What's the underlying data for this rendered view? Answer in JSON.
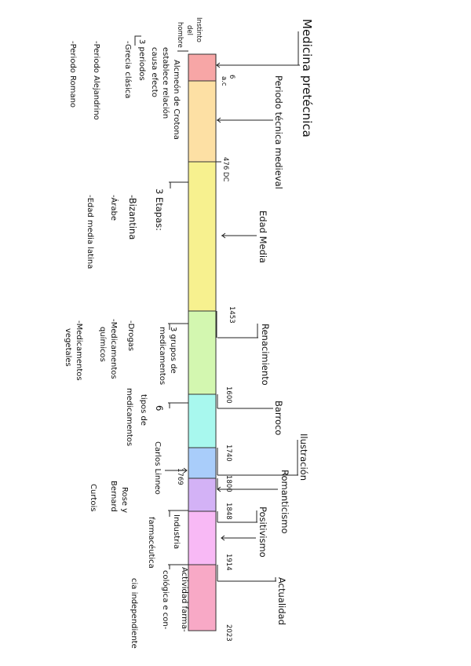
{
  "timeline": {
    "segments": [
      {
        "name": "inicio",
        "color": "#f7a6a6",
        "end": 103
      },
      {
        "name": "tecnica-medieval",
        "color": "#fde0a4",
        "end": 206
      },
      {
        "name": "edad-media",
        "color": "#f7f18f",
        "end": 396
      },
      {
        "name": "renacimiento",
        "color": "#d3f7b0",
        "end": 502
      },
      {
        "name": "barroco",
        "color": "#a8f8ee",
        "end": 570
      },
      {
        "name": "ilustracion",
        "color": "#a9cdfa",
        "end": 609
      },
      {
        "name": "romanticismo",
        "color": "#d3b2f6",
        "end": 651
      },
      {
        "name": "positivismo",
        "color": "#f8b9f5",
        "end": 719
      },
      {
        "name": "actualidad",
        "color": "#f8a9c6",
        "end": 803
      }
    ]
  },
  "periods": {
    "medicina_pretecnica": "Medicina pretécnica",
    "periodo_tecnica_medieval": "Periodo técnica medieval",
    "edad_media": "Edad Media",
    "renacimiento": "Renacimiento",
    "barroco": "Barroco",
    "ilustracion": "Ilustración",
    "romanticismo": "Romanticismo",
    "positivismo": "Positivismo",
    "actualidad": "Actualidad"
  },
  "dates": {
    "d6ac": "6",
    "d6ac_suffix": "a.c",
    "d476": "476 DC",
    "d1453": "1453",
    "d1600": "1600",
    "d1740": "1740",
    "d1769": "1769",
    "d1800": "1800",
    "d1848": "1848",
    "d1914": "1914",
    "d2023": "2023"
  },
  "notes": {
    "instinto": [
      "Instinto",
      "del",
      "hombre"
    ],
    "alcmeon": [
      "Alcmeón de Crotona",
      "establece relación",
      "causa efecto"
    ],
    "tres_periodos": [
      "3 periodos",
      "-Grecia clásica",
      "-Periodo Alejandrino",
      "-Periodo Romano"
    ],
    "tres_etapas": [
      "3 Etapas:",
      "-Bizantina",
      "-Árabe",
      "-Edad media latina"
    ],
    "grupos": [
      "3 grupos de",
      "medicamentos",
      "-Drogas",
      "-Medicamentos",
      "químicos",
      "-Medicamentos",
      "vegetales"
    ],
    "tipos": [
      "6",
      "tipos de",
      "medicamentos"
    ],
    "linneo": "Carlos Linneo",
    "rose": [
      "Rose y",
      "Bernard",
      "Curtois"
    ],
    "industria": [
      "Industria",
      "farmacéutica"
    ],
    "actividad": [
      "Actividad farma-",
      "cológica e con-",
      "cia independiente"
    ]
  }
}
